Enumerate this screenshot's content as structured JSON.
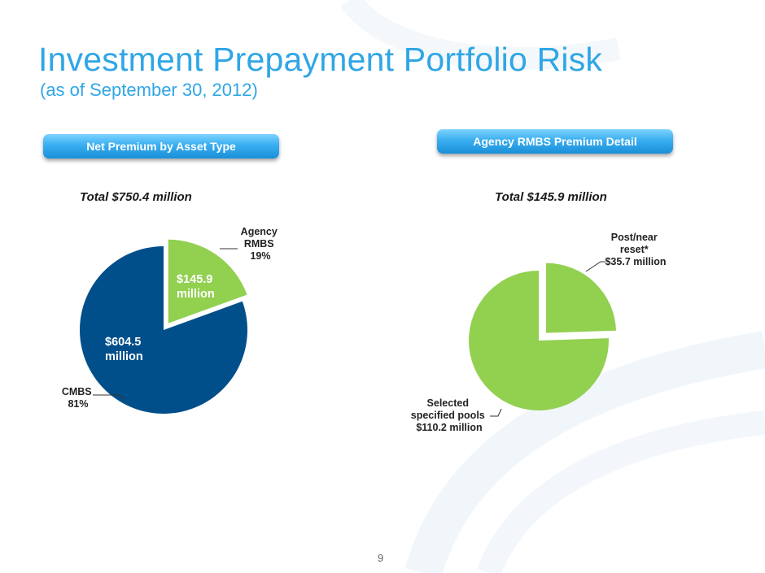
{
  "slide": {
    "title": "Investment Prepayment Portfolio Risk",
    "subtitle": "(as of September 30, 2012)",
    "page_number": "9"
  },
  "left_panel": {
    "header": "Net Premium by Asset Type",
    "total": "Total $750.4 million"
  },
  "right_panel": {
    "header": "Agency RMBS Premium Detail",
    "total": "Total $145.9 million"
  },
  "colors": {
    "title": "#2fa6e6",
    "navy_slice": "#004f8a",
    "green_slice": "#92d050"
  },
  "chart_data": [
    {
      "type": "pie",
      "title": "",
      "slices": [
        {
          "label": [
            "Agency",
            "RMBS",
            "19%"
          ],
          "value": 145.9,
          "percent": 19,
          "value_label": [
            "$145.9",
            "million"
          ],
          "color": "#92d050",
          "exploded": true
        },
        {
          "label": [
            "CMBS",
            "81%"
          ],
          "value": 604.5,
          "percent": 81,
          "value_label": [
            "$604.5",
            "million"
          ],
          "color": "#004f8a",
          "exploded": false
        }
      ]
    },
    {
      "type": "pie",
      "title": "",
      "slices": [
        {
          "label": [
            "Post/near",
            "reset*",
            "$35.7 million"
          ],
          "value": 35.7,
          "color": "#92d050",
          "exploded": true
        },
        {
          "label": [
            "Selected",
            "specified pools",
            "$110.2 million"
          ],
          "value": 110.2,
          "color": "#92d050",
          "exploded": false
        }
      ]
    }
  ]
}
